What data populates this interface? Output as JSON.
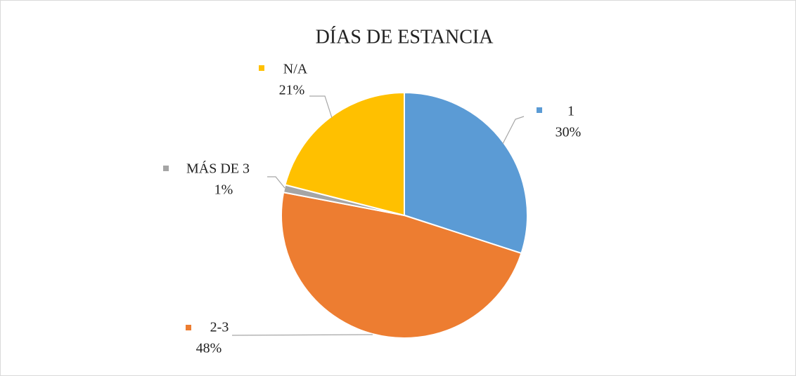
{
  "chart_data": {
    "type": "pie",
    "title": "DÍAS DE ESTANCIA",
    "categories": [
      "1",
      "2-3",
      "MÁS DE 3",
      "N/A"
    ],
    "values": [
      30,
      48,
      1,
      21
    ],
    "value_labels": [
      "30%",
      "48%",
      "1%",
      "21%"
    ],
    "colors": [
      "#5b9bd5",
      "#ed7d31",
      "#a5a5a5",
      "#ffc000"
    ]
  }
}
